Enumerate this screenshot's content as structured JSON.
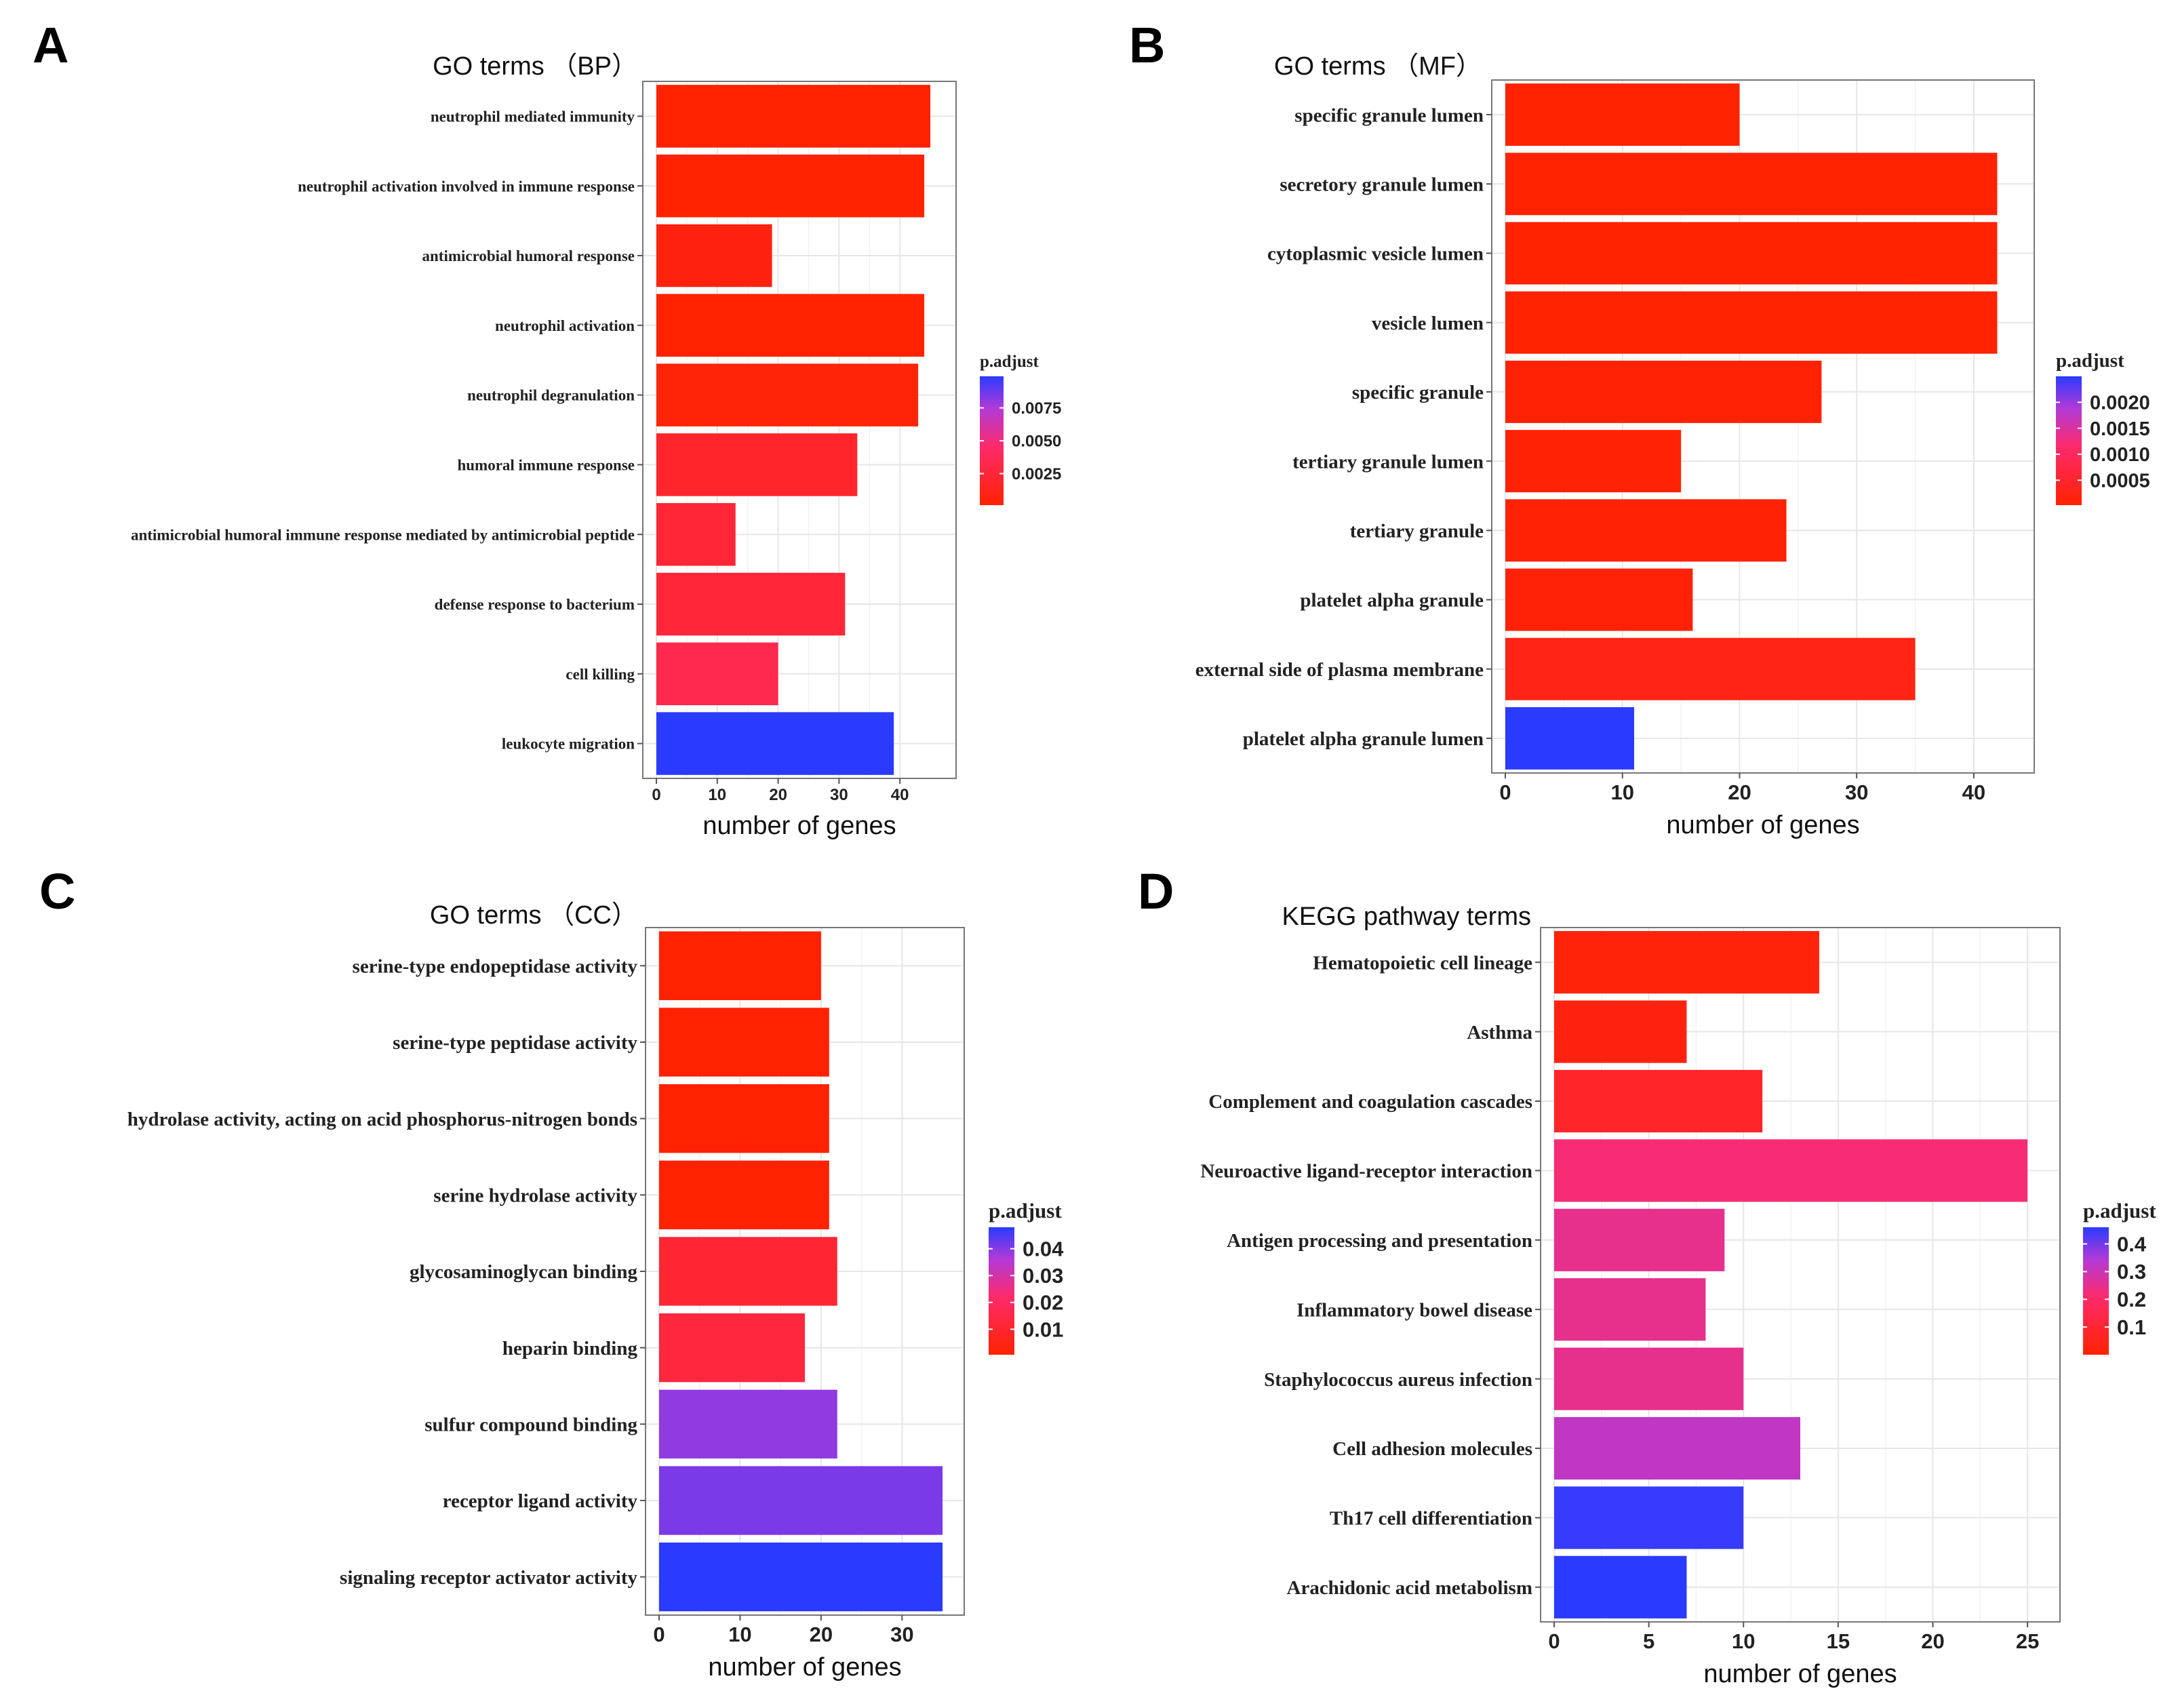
{
  "chart_data": [
    {
      "panel_letter": "A",
      "type": "bar",
      "orientation": "horizontal",
      "title": "GO terms （BP）",
      "xlabel": "number of genes",
      "ylabel": "",
      "xlim": [
        0,
        47
      ],
      "x_ticks": [
        0,
        10,
        20,
        30,
        40
      ],
      "categories": [
        "neutrophil mediated immunity",
        "neutrophil activation involved in immune response",
        "antimicrobial humoral response",
        "neutrophil activation",
        "neutrophil degranulation",
        "humoral immune response",
        "antimicrobial humoral immune response mediated by antimicrobial peptide",
        "defense response to bacterium",
        "cell killing",
        "leukocyte migration"
      ],
      "values": [
        45,
        44,
        19,
        44,
        43,
        33,
        13,
        31,
        20,
        39
      ],
      "p_adjust": [
        0.0001,
        0.0001,
        0.0007,
        0.0001,
        0.0004,
        0.0019,
        0.0023,
        0.0025,
        0.0033,
        0.0099
      ],
      "legend": {
        "title": "p.adjust",
        "ticks": [
          0.0075,
          0.005,
          0.0025
        ],
        "tick_labels": [
          "0.0075",
          "0.0050",
          "0.0025"
        ],
        "min": 0.0001,
        "max": 0.0099,
        "low_color": "#ff2200",
        "high_color": "#2a3bff"
      },
      "grid": true
    },
    {
      "panel_letter": "B",
      "type": "bar",
      "orientation": "horizontal",
      "title": "GO terms （MF）",
      "xlabel": "number of genes",
      "ylabel": "",
      "xlim": [
        0,
        44
      ],
      "x_ticks": [
        0,
        10,
        20,
        30,
        40
      ],
      "categories": [
        "specific granule lumen",
        "secretory granule lumen",
        "cytoplasmic vesicle lumen",
        "vesicle lumen",
        "specific granule",
        "tertiary granule lumen",
        "tertiary granule",
        "platelet alpha granule",
        "external side of plasma membrane",
        "platelet alpha granule lumen"
      ],
      "values": [
        20,
        42,
        42,
        42,
        27,
        15,
        24,
        16,
        35,
        11
      ],
      "p_adjust": [
        2e-05,
        2e-05,
        2e-05,
        2e-05,
        4e-05,
        4e-05,
        6e-05,
        8e-05,
        0.00025,
        0.0025
      ],
      "legend": {
        "title": "p.adjust",
        "ticks": [
          0.002,
          0.0015,
          0.001,
          0.0005
        ],
        "tick_labels": [
          "0.0020",
          "0.0015",
          "0.0010",
          "0.0005"
        ],
        "min": 2e-05,
        "max": 0.0025,
        "low_color": "#ff2200",
        "high_color": "#2a3bff"
      },
      "grid": true
    },
    {
      "panel_letter": "C",
      "type": "bar",
      "orientation": "horizontal",
      "title": "GO terms （CC）",
      "xlabel": "number of genes",
      "ylabel": "",
      "xlim": [
        0,
        36
      ],
      "x_ticks": [
        0,
        10,
        20,
        30
      ],
      "categories": [
        "serine-type endopeptidase activity",
        "serine-type peptidase activity",
        "hydrolase activity, acting on acid phosphorus-nitrogen bonds",
        "serine hydrolase activity",
        "glycosaminoglycan binding",
        "heparin binding",
        "sulfur compound binding",
        "receptor ligand activity",
        "signaling receptor activator activity"
      ],
      "values": [
        20,
        21,
        21,
        21,
        22,
        18,
        22,
        35,
        35
      ],
      "p_adjust": [
        0.0005,
        0.0005,
        0.0005,
        0.0005,
        0.011,
        0.013,
        0.039,
        0.041,
        0.048
      ],
      "legend": {
        "title": "p.adjust",
        "ticks": [
          0.04,
          0.03,
          0.02,
          0.01
        ],
        "tick_labels": [
          "0.04",
          "0.03",
          "0.02",
          "0.01"
        ],
        "min": 0.0005,
        "max": 0.048,
        "low_color": "#ff2200",
        "high_color": "#2a3bff"
      },
      "grid": true
    },
    {
      "panel_letter": "D",
      "type": "bar",
      "orientation": "horizontal",
      "title": "KEGG pathway terms",
      "xlabel": "number of genes",
      "ylabel": "",
      "xlim": [
        0,
        26
      ],
      "x_ticks": [
        0,
        5,
        10,
        15,
        20,
        25
      ],
      "categories": [
        "Hematopoietic cell lineage",
        "Asthma",
        "Complement and coagulation cascades",
        "Neuroactive ligand-receptor interaction",
        "Antigen processing and presentation",
        "Inflammatory bowel disease",
        "Staphylococcus aureus infection",
        "Cell adhesion molecules",
        "Th17 cell differentiation",
        "Arachidonic acid metabolism"
      ],
      "values": [
        14,
        7,
        11,
        25,
        9,
        8,
        10,
        13,
        10,
        7
      ],
      "p_adjust": [
        0.02,
        0.03,
        0.08,
        0.22,
        0.25,
        0.25,
        0.25,
        0.32,
        0.45,
        0.46
      ],
      "legend": {
        "title": "p.adjust",
        "ticks": [
          0.4,
          0.3,
          0.2,
          0.1
        ],
        "tick_labels": [
          "0.4",
          "0.3",
          "0.2",
          "0.1"
        ],
        "min": 0.0,
        "max": 0.46,
        "low_color": "#ff2200",
        "high_color": "#2a3bff"
      },
      "grid": true
    }
  ]
}
